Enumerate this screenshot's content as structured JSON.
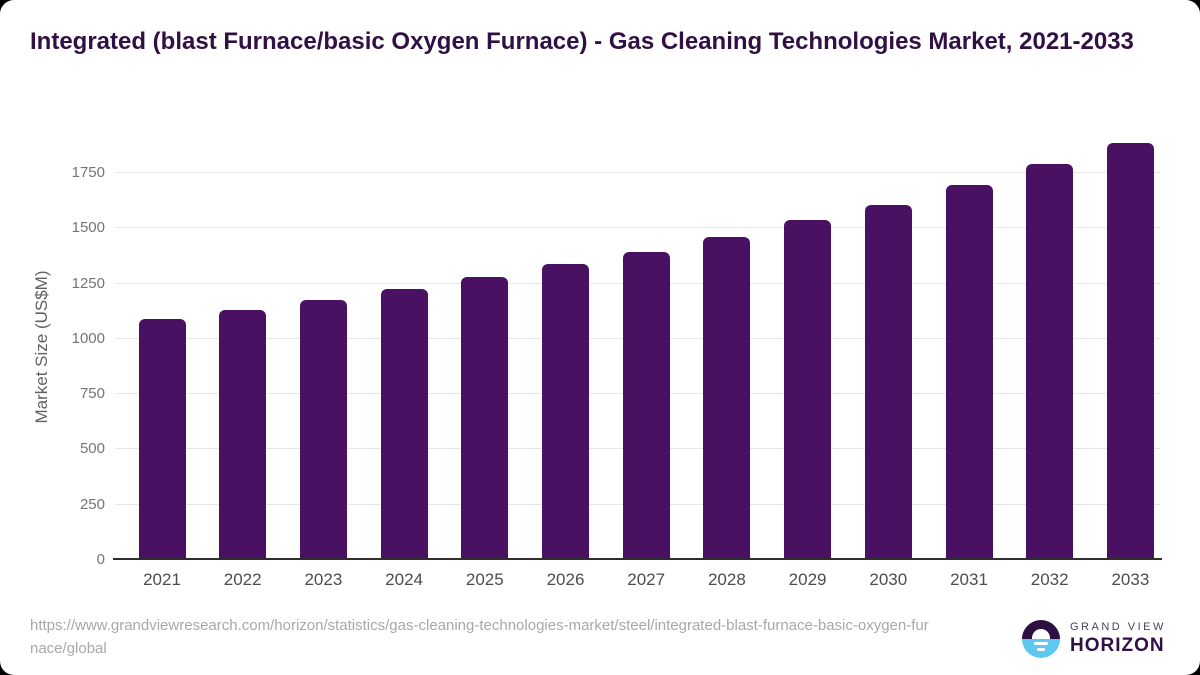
{
  "page": {
    "title": "Integrated (blast Furnace/basic Oxygen Furnace) - Gas Cleaning Technologies Market, 2021-2033",
    "source_url": "https://www.grandviewresearch.com/horizon/statistics/gas-cleaning-technologies-market/steel/integrated-blast-furnace-basic-oxygen-furnace/global"
  },
  "brand": {
    "name_top": "GRAND VIEW",
    "name_bottom": "HORIZON",
    "logo_icon": "horizon-sun-circle-icon",
    "logo_purple": "#2d1040",
    "logo_blue": "#5ec8f0"
  },
  "chart_data": {
    "type": "bar",
    "title": "Integrated (blast Furnace/basic Oxygen Furnace) - Gas Cleaning Technologies Market, 2021-2033",
    "xlabel": "",
    "ylabel": "Market Size (US$M)",
    "categories": [
      "2021",
      "2022",
      "2023",
      "2024",
      "2025",
      "2026",
      "2027",
      "2028",
      "2029",
      "2030",
      "2031",
      "2032",
      "2033"
    ],
    "values": [
      1090,
      1130,
      1175,
      1225,
      1278,
      1338,
      1393,
      1461,
      1537,
      1608,
      1697,
      1790,
      1886
    ],
    "yticks": [
      0,
      250,
      500,
      750,
      1000,
      1250,
      1500,
      1750
    ],
    "ylim": [
      0,
      1900
    ],
    "grid": "horizontal",
    "legend": "none",
    "bar_color": "#4a1061",
    "title_color": "#311043",
    "axis_line_color": "#2e2e2e",
    "gridline_color": "#e7e7e7",
    "tick_label_color": "#757575"
  }
}
